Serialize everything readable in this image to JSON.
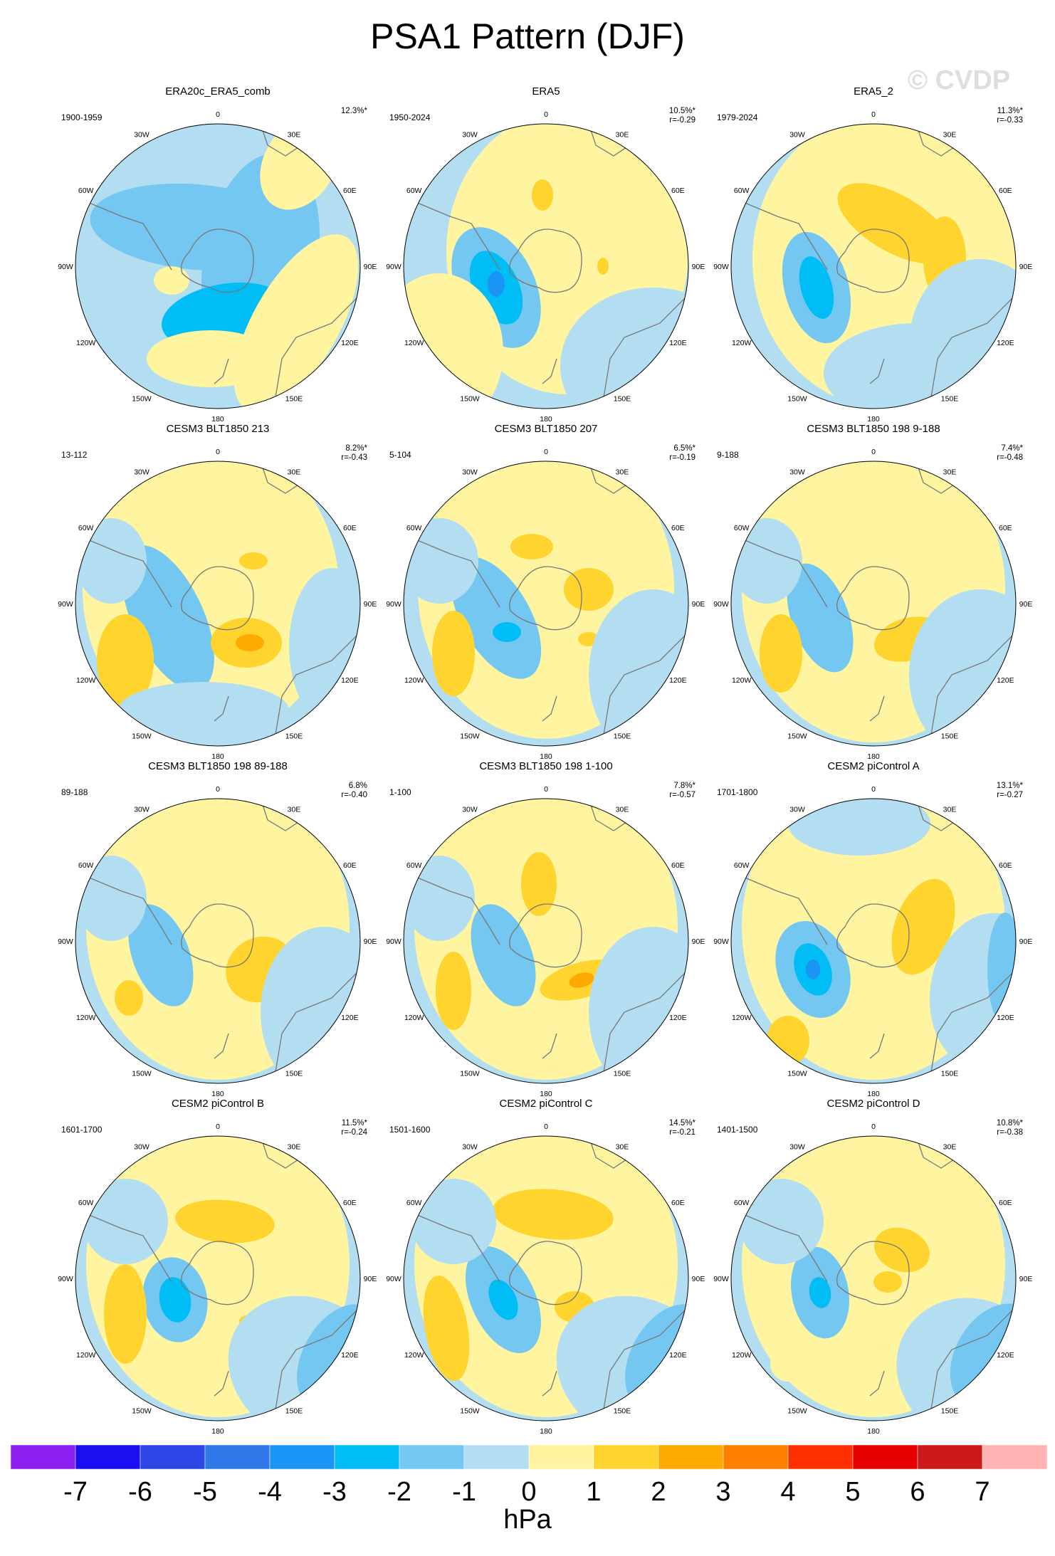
{
  "title": "PSA1 Pattern (DJF)",
  "watermark": "© CVDP",
  "lon_labels": [
    "0",
    "30E",
    "60E",
    "90E",
    "120E",
    "150E",
    "180",
    "150W",
    "120W",
    "90W",
    "60W",
    "30W"
  ],
  "colors": {
    "land_outline": "#777777",
    "palette": [
      "#8b20f0",
      "#1b0ff2",
      "#2d46e6",
      "#2f78e8",
      "#1a95f5",
      "#00bdf5",
      "#74c7f0",
      "#b3def2",
      "#fff5a0",
      "#ffd42e",
      "#ffaa00",
      "#ff7f00",
      "#ff3000",
      "#e60000",
      "#cc1a1a",
      "#ffb3b3"
    ]
  },
  "panels": [
    {
      "name": "ERA20c_ERA5_comb",
      "period": "1900-1959",
      "pct": "12.3%*",
      "r": ""
    },
    {
      "name": "ERA5",
      "period": "1950-2024",
      "pct": "10.5%*",
      "r": "r=-0.29"
    },
    {
      "name": "ERA5_2",
      "period": "1979-2024",
      "pct": "11.3%*",
      "r": "r=-0.33"
    },
    {
      "name": "CESM3 BLT1850 213",
      "period": "13-112",
      "pct": "8.2%*",
      "r": "r=-0.43"
    },
    {
      "name": "CESM3 BLT1850 207",
      "period": "5-104",
      "pct": "6.5%*",
      "r": "r=-0.19"
    },
    {
      "name": "CESM3 BLT1850 198 9-188",
      "period": "9-188",
      "pct": "7.4%*",
      "r": "r=-0.48"
    },
    {
      "name": "CESM3 BLT1850 198 89-188",
      "period": "89-188",
      "pct": "6.8%",
      "r": "r=-0.40"
    },
    {
      "name": "CESM3 BLT1850 198 1-100",
      "period": "1-100",
      "pct": "7.8%*",
      "r": "r=-0.57"
    },
    {
      "name": "CESM2 piControl A",
      "period": "1701-1800",
      "pct": "13.1%*",
      "r": "r=-0.27"
    },
    {
      "name": "CESM2 piControl B",
      "period": "1601-1700",
      "pct": "11.5%*",
      "r": "r=-0.24"
    },
    {
      "name": "CESM2 piControl C",
      "period": "1501-1600",
      "pct": "14.5%*",
      "r": "r=-0.21"
    },
    {
      "name": "CESM2 piControl D",
      "period": "1401-1500",
      "pct": "10.8%*",
      "r": "r=-0.38"
    }
  ],
  "colorbar": {
    "ticks": [
      "-7",
      "-6",
      "-5",
      "-4",
      "-3",
      "-2",
      "-1",
      "0",
      "1",
      "2",
      "3",
      "4",
      "5",
      "6",
      "7"
    ],
    "unit": "hPa"
  }
}
